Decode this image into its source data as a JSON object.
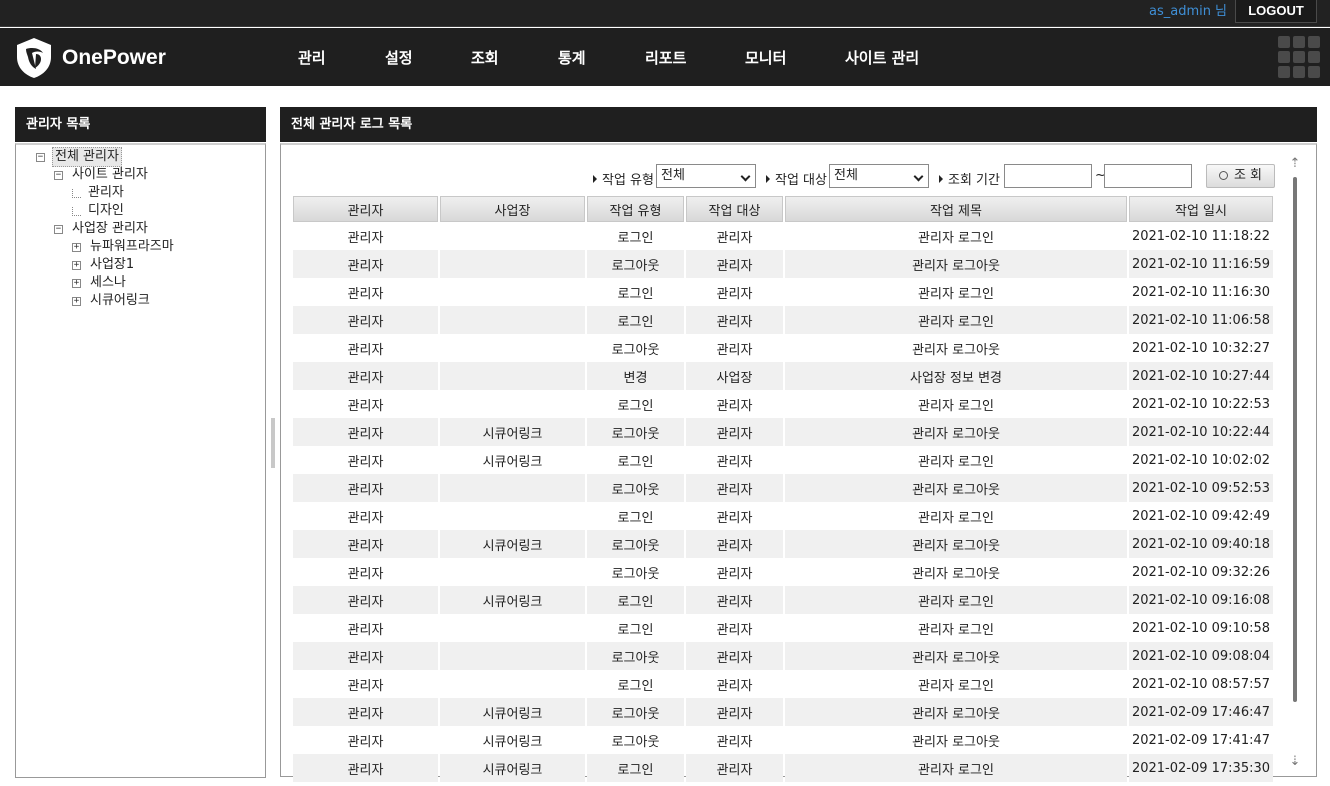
{
  "topbar": {
    "username": "as_admin",
    "user_suffix": "님",
    "logout_label": "LOGOUT"
  },
  "header": {
    "logo_text": "OnePower",
    "nav": [
      "관리",
      "설정",
      "조회",
      "통계",
      "리포트",
      "모니터",
      "사이트 관리"
    ],
    "apps_icon": "grid-icon"
  },
  "left_panel": {
    "title": "관리자 목록",
    "tree": [
      {
        "label": "전체 관리자",
        "level": 0,
        "toggle": "−",
        "selected": true
      },
      {
        "label": "사이트 관리자",
        "level": 1,
        "toggle": "−"
      },
      {
        "label": "관리자",
        "level": 2,
        "toggle": ""
      },
      {
        "label": "디자인",
        "level": 2,
        "toggle": ""
      },
      {
        "label": "사업장 관리자",
        "level": 1,
        "toggle": "−"
      },
      {
        "label": "뉴파워프라즈마",
        "level": 2,
        "toggle": "+"
      },
      {
        "label": "사업장1",
        "level": 2,
        "toggle": "+"
      },
      {
        "label": "세스나",
        "level": 2,
        "toggle": "+"
      },
      {
        "label": "시큐어링크",
        "level": 2,
        "toggle": "+"
      }
    ]
  },
  "right_panel": {
    "title": "전체 관리자 로그 목록",
    "filters": {
      "type_label": "작업 유형",
      "type_value": "전체",
      "target_label": "작업 대상",
      "target_value": "전체",
      "period_label": "조회 기간",
      "period_from": "",
      "period_to": "",
      "tilde": "~",
      "search_label": "조 회"
    },
    "columns": [
      "관리자",
      "사업장",
      "작업 유형",
      "작업 대상",
      "작업 제목",
      "작업 일시"
    ],
    "rows": [
      [
        "관리자",
        "",
        "로그인",
        "관리자",
        "관리자 로그인",
        "2021-02-10 11:18:22"
      ],
      [
        "관리자",
        "",
        "로그아웃",
        "관리자",
        "관리자 로그아웃",
        "2021-02-10 11:16:59"
      ],
      [
        "관리자",
        "",
        "로그인",
        "관리자",
        "관리자 로그인",
        "2021-02-10 11:16:30"
      ],
      [
        "관리자",
        "",
        "로그인",
        "관리자",
        "관리자 로그인",
        "2021-02-10 11:06:58"
      ],
      [
        "관리자",
        "",
        "로그아웃",
        "관리자",
        "관리자 로그아웃",
        "2021-02-10 10:32:27"
      ],
      [
        "관리자",
        "",
        "변경",
        "사업장",
        "사업장 정보 변경",
        "2021-02-10 10:27:44"
      ],
      [
        "관리자",
        "",
        "로그인",
        "관리자",
        "관리자 로그인",
        "2021-02-10 10:22:53"
      ],
      [
        "관리자",
        "시큐어링크",
        "로그아웃",
        "관리자",
        "관리자 로그아웃",
        "2021-02-10 10:22:44"
      ],
      [
        "관리자",
        "시큐어링크",
        "로그인",
        "관리자",
        "관리자 로그인",
        "2021-02-10 10:02:02"
      ],
      [
        "관리자",
        "",
        "로그아웃",
        "관리자",
        "관리자 로그아웃",
        "2021-02-10 09:52:53"
      ],
      [
        "관리자",
        "",
        "로그인",
        "관리자",
        "관리자 로그인",
        "2021-02-10 09:42:49"
      ],
      [
        "관리자",
        "시큐어링크",
        "로그아웃",
        "관리자",
        "관리자 로그아웃",
        "2021-02-10 09:40:18"
      ],
      [
        "관리자",
        "",
        "로그아웃",
        "관리자",
        "관리자 로그아웃",
        "2021-02-10 09:32:26"
      ],
      [
        "관리자",
        "시큐어링크",
        "로그인",
        "관리자",
        "관리자 로그인",
        "2021-02-10 09:16:08"
      ],
      [
        "관리자",
        "",
        "로그인",
        "관리자",
        "관리자 로그인",
        "2021-02-10 09:10:58"
      ],
      [
        "관리자",
        "",
        "로그아웃",
        "관리자",
        "관리자 로그아웃",
        "2021-02-10 09:08:04"
      ],
      [
        "관리자",
        "",
        "로그인",
        "관리자",
        "관리자 로그인",
        "2021-02-10 08:57:57"
      ],
      [
        "관리자",
        "시큐어링크",
        "로그아웃",
        "관리자",
        "관리자 로그아웃",
        "2021-02-09 17:46:47"
      ],
      [
        "관리자",
        "시큐어링크",
        "로그아웃",
        "관리자",
        "관리자 로그아웃",
        "2021-02-09 17:41:47"
      ],
      [
        "관리자",
        "시큐어링크",
        "로그인",
        "관리자",
        "관리자 로그인",
        "2021-02-09 17:35:30"
      ]
    ]
  },
  "colors": {
    "accent_link": "#3f8fd6",
    "header_bg": "#1f1f1f",
    "topbar_bg": "#222222"
  }
}
